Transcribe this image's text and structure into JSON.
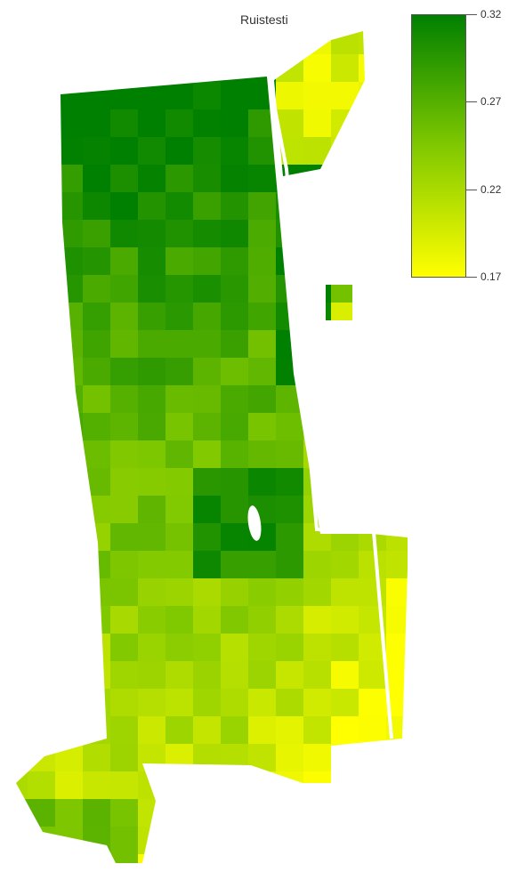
{
  "map": {
    "title": "Ruistesti",
    "legend": {
      "min": 0.17,
      "max": 0.32,
      "ticks": [
        "0.32",
        "0.27",
        "0.22",
        "0.17"
      ],
      "color_low": "#ffff00",
      "color_mid": "#80c800",
      "color_high": "#008000"
    }
  },
  "icons": {
    "field": "field-raster-map",
    "path": "white-track-line"
  }
}
